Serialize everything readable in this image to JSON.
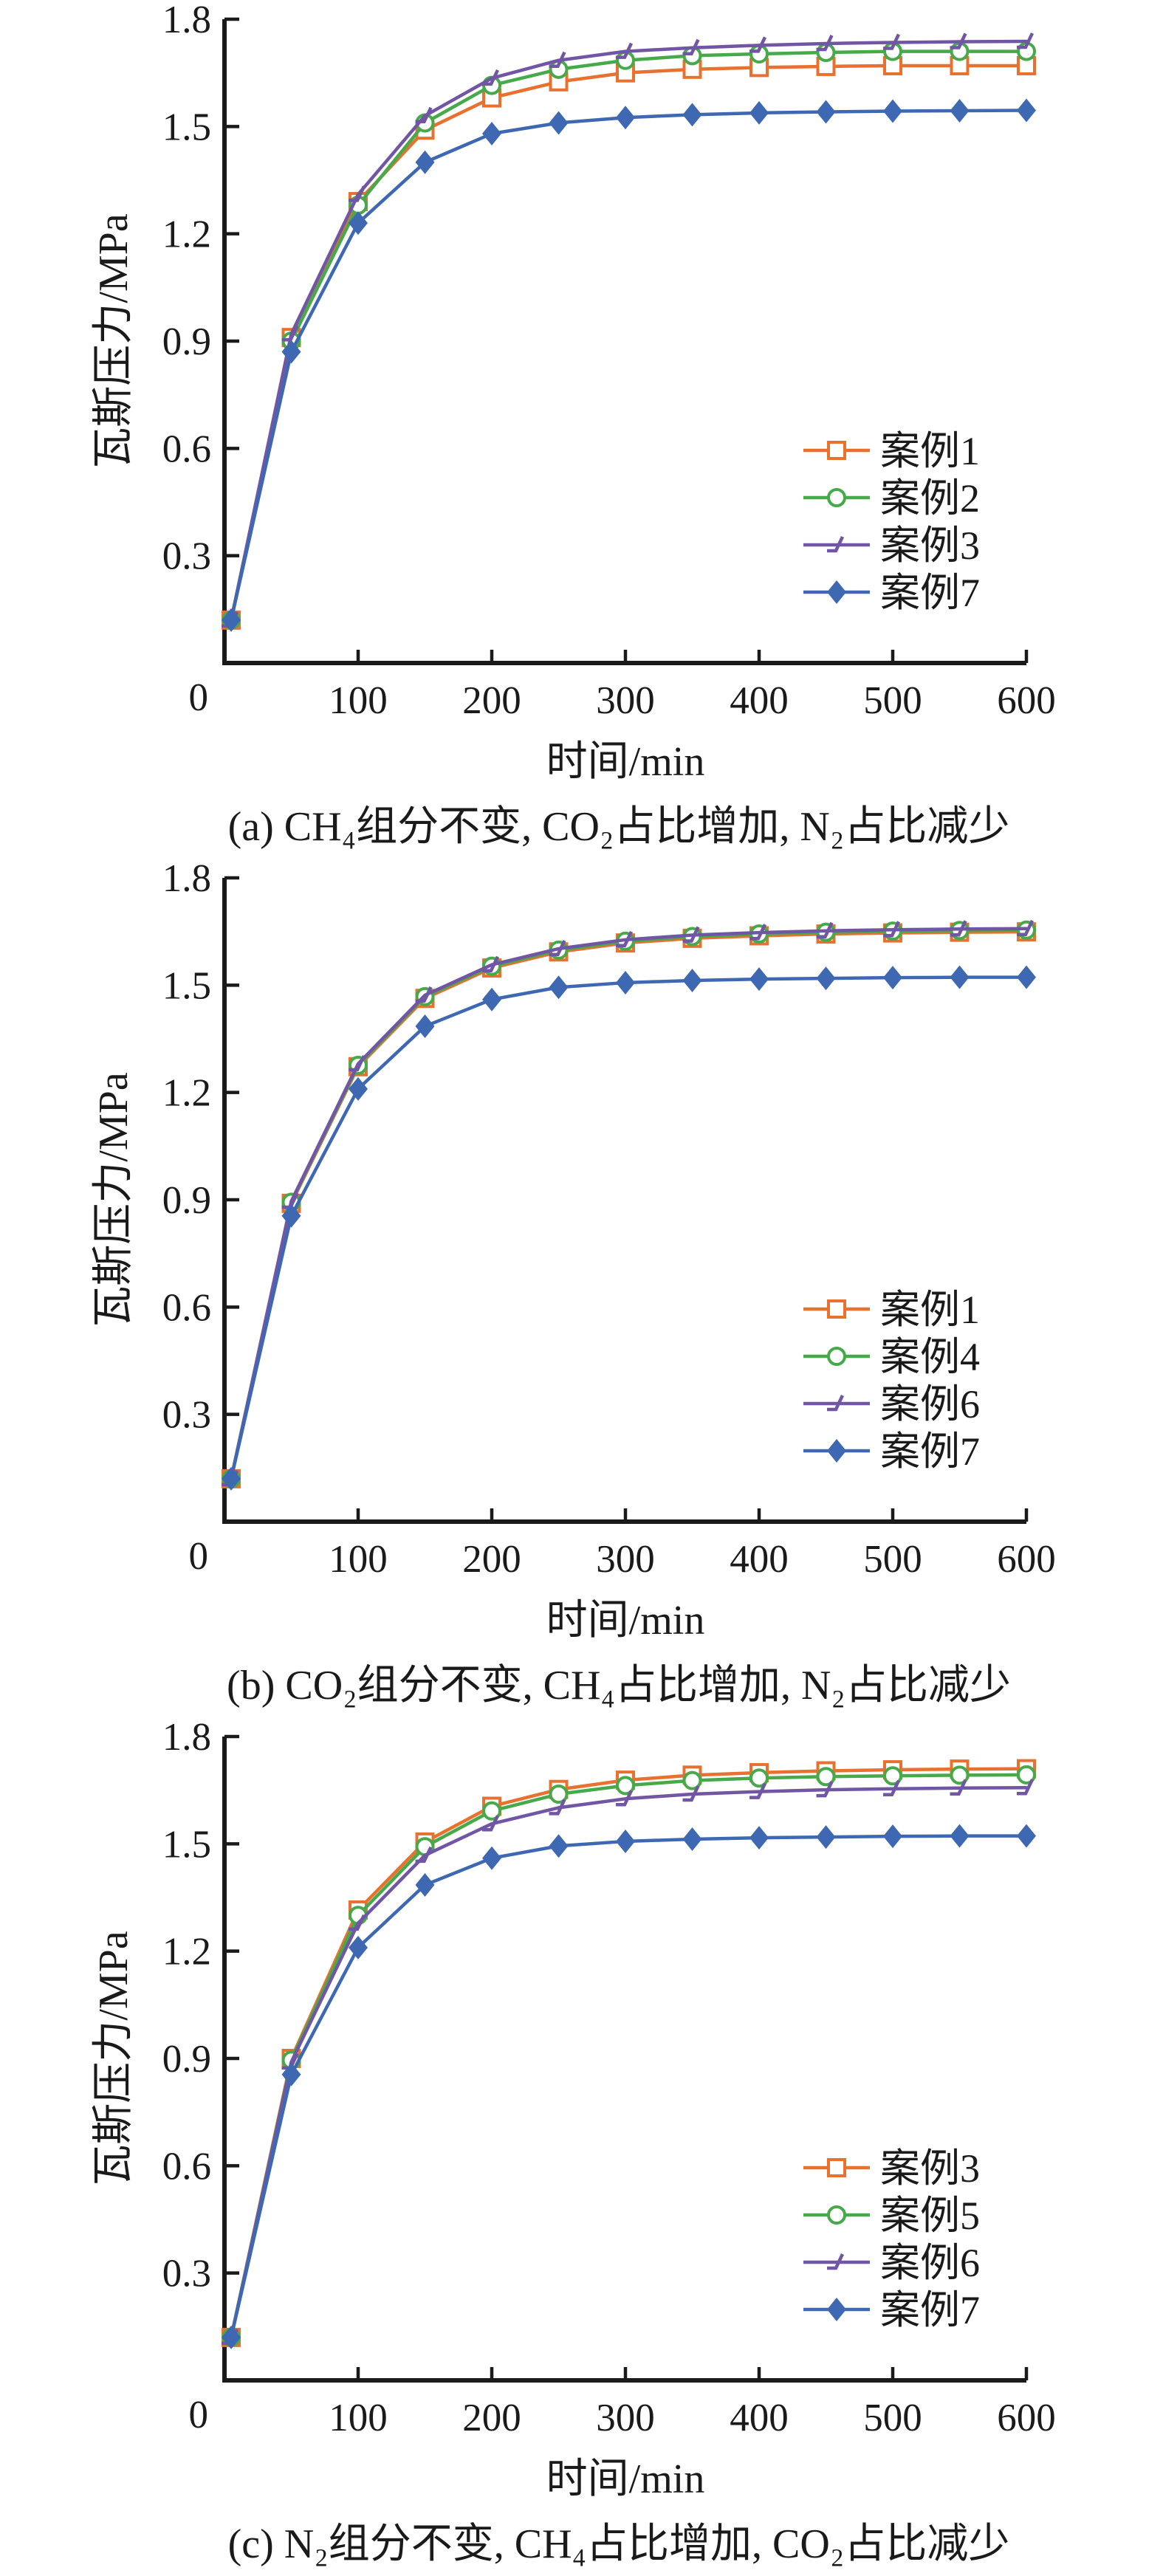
{
  "style": {
    "background": "#ffffff",
    "axis_color": "#1a1a1a",
    "text_color": "#1a1a1a"
  },
  "chart_data": [
    {
      "type": "line",
      "panel": "a",
      "caption": "(a) CH₄组分不变, CO₂占比增加, N₂占比减少",
      "xlabel": "时间/min",
      "ylabel": "瓦斯压力/MPa",
      "xlim": [
        0,
        600
      ],
      "ylim": [
        0,
        1.8
      ],
      "xticks": [
        100,
        200,
        300,
        400,
        500,
        600
      ],
      "yticks": [
        0,
        0.3,
        0.6,
        0.9,
        1.2,
        1.5,
        1.8
      ],
      "ytick_labels": [
        "0",
        "0.3",
        "0.6",
        "0.9",
        "1.2",
        "1.5",
        "1.8"
      ],
      "grid": false,
      "legend_position": "inside-lower-right",
      "x": [
        5,
        50,
        100,
        150,
        200,
        250,
        300,
        350,
        400,
        450,
        500,
        550,
        600
      ],
      "series": [
        {
          "name": "案例1",
          "color": "#E8712F",
          "marker": "open-square",
          "values": [
            0.12,
            0.91,
            1.29,
            1.49,
            1.58,
            1.625,
            1.65,
            1.66,
            1.665,
            1.668,
            1.67,
            1.67,
            1.67
          ]
        },
        {
          "name": "案例2",
          "color": "#46A94A",
          "marker": "open-circle",
          "values": [
            0.12,
            0.9,
            1.28,
            1.51,
            1.615,
            1.66,
            1.685,
            1.698,
            1.703,
            1.707,
            1.71,
            1.71,
            1.71
          ]
        },
        {
          "name": "案例3",
          "color": "#7056A4",
          "marker": "tri-flag",
          "values": [
            0.12,
            0.92,
            1.31,
            1.53,
            1.635,
            1.685,
            1.71,
            1.72,
            1.727,
            1.732,
            1.735,
            1.737,
            1.738
          ]
        },
        {
          "name": "案例7",
          "color": "#3E68B2",
          "marker": "diamond",
          "values": [
            0.12,
            0.87,
            1.23,
            1.4,
            1.48,
            1.51,
            1.525,
            1.533,
            1.538,
            1.541,
            1.543,
            1.544,
            1.545
          ]
        }
      ]
    },
    {
      "type": "line",
      "panel": "b",
      "caption": "(b) CO₂组分不变, CH₄占比增加, N₂占比减少",
      "xlabel": "时间/min",
      "ylabel": "瓦斯压力/MPa",
      "xlim": [
        0,
        600
      ],
      "ylim": [
        0,
        1.8
      ],
      "xticks": [
        100,
        200,
        300,
        400,
        500,
        600
      ],
      "yticks": [
        0,
        0.3,
        0.6,
        0.9,
        1.2,
        1.5,
        1.8
      ],
      "ytick_labels": [
        "0",
        "0.3",
        "0.6",
        "0.9",
        "1.2",
        "1.5",
        "1.8"
      ],
      "grid": false,
      "legend_position": "inside-lower-right",
      "x": [
        5,
        50,
        100,
        150,
        200,
        250,
        300,
        350,
        400,
        450,
        500,
        550,
        600
      ],
      "series": [
        {
          "name": "案例1",
          "color": "#E8712F",
          "marker": "open-square",
          "values": [
            0.12,
            0.89,
            1.272,
            1.463,
            1.548,
            1.593,
            1.618,
            1.631,
            1.638,
            1.643,
            1.646,
            1.648,
            1.649
          ]
        },
        {
          "name": "案例4",
          "color": "#46A94A",
          "marker": "open-circle",
          "values": [
            0.12,
            0.893,
            1.276,
            1.468,
            1.553,
            1.598,
            1.623,
            1.636,
            1.643,
            1.648,
            1.651,
            1.653,
            1.654
          ]
        },
        {
          "name": "案例6",
          "color": "#7056A4",
          "marker": "tri-flag",
          "values": [
            0.12,
            0.896,
            1.28,
            1.472,
            1.557,
            1.602,
            1.627,
            1.64,
            1.647,
            1.652,
            1.655,
            1.657,
            1.658
          ]
        },
        {
          "name": "案例7",
          "color": "#3E68B2",
          "marker": "diamond",
          "values": [
            0.12,
            0.855,
            1.21,
            1.385,
            1.46,
            1.494,
            1.507,
            1.513,
            1.517,
            1.519,
            1.521,
            1.522,
            1.522
          ]
        }
      ]
    },
    {
      "type": "line",
      "panel": "c",
      "caption": "(c) N₂组分不变, CH₄占比增加, CO₂占比减少",
      "xlabel": "时间/min",
      "ylabel": "瓦斯压力/MPa",
      "xlim": [
        0,
        600
      ],
      "ylim": [
        0,
        1.8
      ],
      "xticks": [
        100,
        200,
        300,
        400,
        500,
        600
      ],
      "yticks": [
        0,
        0.3,
        0.6,
        0.9,
        1.2,
        1.5,
        1.8
      ],
      "ytick_labels": [
        "0",
        "0.3",
        "0.6",
        "0.9",
        "1.2",
        "1.5",
        "1.8"
      ],
      "grid": false,
      "legend_position": "inside-lower-right",
      "x": [
        5,
        50,
        100,
        150,
        200,
        250,
        300,
        350,
        400,
        450,
        500,
        550,
        600
      ],
      "series": [
        {
          "name": "案例3",
          "color": "#E8712F",
          "marker": "open-square",
          "values": [
            0.12,
            0.9,
            1.315,
            1.505,
            1.605,
            1.652,
            1.678,
            1.692,
            1.699,
            1.704,
            1.707,
            1.709,
            1.71
          ]
        },
        {
          "name": "案例5",
          "color": "#46A94A",
          "marker": "open-circle",
          "values": [
            0.12,
            0.895,
            1.3,
            1.492,
            1.592,
            1.639,
            1.663,
            1.677,
            1.684,
            1.688,
            1.69,
            1.692,
            1.693
          ]
        },
        {
          "name": "案例6",
          "color": "#7056A4",
          "marker": "tri-flag",
          "values": [
            0.12,
            0.89,
            1.278,
            1.468,
            1.556,
            1.601,
            1.626,
            1.639,
            1.646,
            1.651,
            1.654,
            1.656,
            1.657
          ]
        },
        {
          "name": "案例7",
          "color": "#3E68B2",
          "marker": "diamond",
          "values": [
            0.12,
            0.855,
            1.21,
            1.385,
            1.46,
            1.494,
            1.507,
            1.513,
            1.517,
            1.519,
            1.521,
            1.522,
            1.522
          ]
        }
      ]
    }
  ]
}
